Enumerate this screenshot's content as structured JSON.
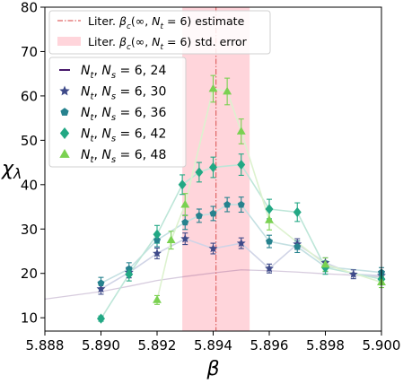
{
  "chart_data": {
    "type": "scatter",
    "xlabel": "β",
    "ylabel": "χ_λ",
    "xlim": [
      5.888,
      5.9
    ],
    "ylim": [
      7,
      80
    ],
    "xticks": [
      5.888,
      5.89,
      5.892,
      5.894,
      5.896,
      5.898,
      5.9
    ],
    "xtick_labels": [
      "5.888",
      "5.890",
      "5.892",
      "5.894",
      "5.896",
      "5.898",
      "5.900"
    ],
    "yticks": [
      10,
      20,
      30,
      40,
      50,
      60,
      70,
      80
    ],
    "ytick_labels": [
      "10",
      "20",
      "30",
      "40",
      "50",
      "60",
      "70",
      "80"
    ],
    "grid": false,
    "legend_position": "top-left",
    "reference_line": {
      "label": "Liter. β_c(∞, N_t = 6) estimate",
      "x": 5.8941,
      "color": "#e06666"
    },
    "reference_band": {
      "label": "Liter. β_c(∞, N_t = 6) std. error",
      "x0": 5.8929,
      "x1": 5.8953,
      "color": "#ffb3bd"
    },
    "series": [
      {
        "name": "N_t, N_s = 6, 24",
        "marker": "line",
        "color": "#48196b",
        "line_color": "#d8d2e2",
        "x": [
          5.888,
          5.89,
          5.891,
          5.892,
          5.893,
          5.894,
          5.895,
          5.896,
          5.897,
          5.898,
          5.899,
          5.9
        ],
        "y": [
          14.2,
          15.9,
          17.1,
          18.4,
          19.3,
          20.1,
          20.8,
          20.6,
          20.3,
          19.9,
          19.6,
          19.2
        ],
        "err": [
          0,
          0,
          0,
          0,
          0,
          0,
          0,
          0,
          0,
          0,
          0,
          0
        ]
      },
      {
        "name": "N_t, N_s = 6, 30",
        "marker": "star",
        "color": "#3e4a89",
        "line_color": "#d0d4e6",
        "x": [
          5.89,
          5.891,
          5.892,
          5.893,
          5.894,
          5.895,
          5.896,
          5.897,
          5.898,
          5.899,
          5.9
        ],
        "y": [
          16.5,
          20.2,
          24.5,
          27.8,
          25.6,
          26.8,
          21.1,
          26.6,
          22.4,
          19.8,
          19.5
        ],
        "err": [
          1.2,
          1.2,
          1.2,
          1.3,
          1.2,
          1.2,
          1.0,
          1.2,
          1.1,
          1.0,
          1.0
        ]
      },
      {
        "name": "N_t, N_s = 6, 36",
        "marker": "pentagon",
        "color": "#26828e",
        "line_color": "#c4e0e2",
        "x": [
          5.89,
          5.891,
          5.892,
          5.893,
          5.8935,
          5.894,
          5.8945,
          5.895,
          5.896,
          5.897,
          5.898,
          5.9
        ],
        "y": [
          17.8,
          21.0,
          27.5,
          31.5,
          33.0,
          33.5,
          35.5,
          35.5,
          27.2,
          26.0,
          21.5,
          20.2
        ],
        "err": [
          1.3,
          1.4,
          1.5,
          1.6,
          1.5,
          1.6,
          1.6,
          1.7,
          1.4,
          1.3,
          1.1,
          1.1
        ]
      },
      {
        "name": "N_t, N_s = 6, 42",
        "marker": "diamond",
        "color": "#22a884",
        "line_color": "#bde6d8",
        "x": [
          5.89,
          5.891,
          5.892,
          5.8929,
          5.8935,
          5.894,
          5.895,
          5.896,
          5.897,
          5.898,
          5.9
        ],
        "y": [
          9.8,
          19.8,
          28.8,
          40.0,
          42.8,
          43.9,
          44.5,
          34.5,
          33.8,
          21.3,
          18.7
        ],
        "err": [
          0.6,
          1.5,
          2.0,
          2.2,
          2.2,
          2.3,
          2.4,
          2.2,
          2.1,
          1.5,
          1.3
        ]
      },
      {
        "name": "N_t, N_s = 6, 48",
        "marker": "triangle",
        "color": "#7ad151",
        "line_color": "#ddf2cf",
        "x": [
          5.892,
          5.8925,
          5.893,
          5.894,
          5.8945,
          5.895,
          5.896,
          5.898,
          5.9
        ],
        "y": [
          14.0,
          27.5,
          35.5,
          61.6,
          61.0,
          52.0,
          32.0,
          22.0,
          18.0
        ],
        "err": [
          1.0,
          2.0,
          2.5,
          3.0,
          3.0,
          2.8,
          2.2,
          1.5,
          1.2
        ]
      }
    ]
  }
}
